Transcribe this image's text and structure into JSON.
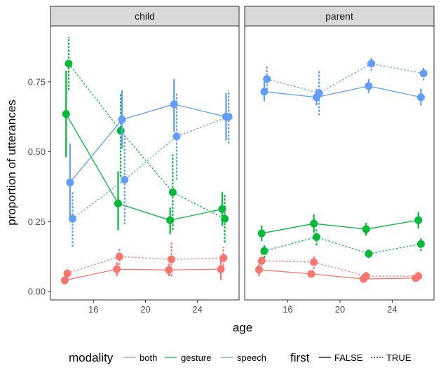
{
  "chart_data": {
    "type": "line",
    "xlabel": "age",
    "ylabel": "proportion of utterances",
    "xlim": [
      12.7,
      27.2
    ],
    "ylim": [
      -0.03,
      0.95
    ],
    "x_ticks": [
      16,
      20,
      24
    ],
    "y_ticks": [
      0,
      0.25,
      0.5,
      0.75
    ],
    "y_tick_labels": [
      "0.00",
      "0.25",
      "0.50",
      "0.75"
    ],
    "grid": false,
    "legend_position": "bottom",
    "modality_title": "modality",
    "modality_entries": [
      {
        "key": "both",
        "label": "both",
        "color": "#F8766D"
      },
      {
        "key": "gesture",
        "label": "gesture",
        "color": "#00BA38"
      },
      {
        "key": "speech",
        "label": "speech",
        "color": "#619CFF"
      }
    ],
    "first_title": "first",
    "first_entries": [
      {
        "key": "FALSE",
        "label": "FALSE",
        "dash": "solid"
      },
      {
        "key": "TRUE",
        "label": "TRUE",
        "dash": "dotted"
      }
    ],
    "panels": [
      {
        "title": "child",
        "series": [
          {
            "modality": "both",
            "first": "FALSE",
            "points": [
              [
                13.8,
                0.04,
                0.025,
                0.055
              ],
              [
                17.8,
                0.08,
                0.055,
                0.105
              ],
              [
                21.8,
                0.077,
                0.055,
                0.1
              ],
              [
                25.8,
                0.08,
                0.04,
                0.12
              ]
            ]
          },
          {
            "modality": "both",
            "first": "TRUE",
            "points": [
              [
                14.0,
                0.065,
                0.045,
                0.085
              ],
              [
                18.0,
                0.125,
                0.095,
                0.155
              ],
              [
                22.0,
                0.115,
                0.055,
                0.175
              ],
              [
                26.0,
                0.12,
                0.08,
                0.16
              ]
            ]
          },
          {
            "modality": "gesture",
            "first": "FALSE",
            "points": [
              [
                13.9,
                0.635,
                0.48,
                0.79
              ],
              [
                17.9,
                0.315,
                0.22,
                0.43
              ],
              [
                21.9,
                0.255,
                0.205,
                0.3
              ],
              [
                25.9,
                0.295,
                0.235,
                0.355
              ]
            ]
          },
          {
            "modality": "gesture",
            "first": "TRUE",
            "points": [
              [
                14.1,
                0.815,
                0.72,
                0.91
              ],
              [
                18.1,
                0.575,
                0.41,
                0.71
              ],
              [
                22.1,
                0.355,
                0.22,
                0.49
              ],
              [
                26.1,
                0.26,
                0.175,
                0.345
              ]
            ]
          },
          {
            "modality": "speech",
            "first": "FALSE",
            "points": [
              [
                14.2,
                0.39,
                0.26,
                0.53
              ],
              [
                18.2,
                0.615,
                0.51,
                0.72
              ],
              [
                22.2,
                0.67,
                0.57,
                0.76
              ],
              [
                26.2,
                0.625,
                0.54,
                0.71
              ]
            ]
          },
          {
            "modality": "speech",
            "first": "TRUE",
            "points": [
              [
                14.4,
                0.26,
                0.16,
                0.36
              ],
              [
                18.4,
                0.4,
                0.24,
                0.56
              ],
              [
                22.4,
                0.555,
                0.4,
                0.71
              ],
              [
                26.4,
                0.625,
                0.53,
                0.72
              ]
            ]
          }
        ]
      },
      {
        "title": "parent",
        "series": [
          {
            "modality": "both",
            "first": "FALSE",
            "points": [
              [
                13.8,
                0.078,
                0.055,
                0.1
              ],
              [
                17.8,
                0.063,
                0.05,
                0.076
              ],
              [
                21.8,
                0.045,
                0.035,
                0.055
              ],
              [
                25.8,
                0.048,
                0.035,
                0.061
              ]
            ]
          },
          {
            "modality": "both",
            "first": "TRUE",
            "points": [
              [
                14.0,
                0.11,
                0.08,
                0.14
              ],
              [
                18.0,
                0.105,
                0.08,
                0.13
              ],
              [
                22.0,
                0.055,
                0.04,
                0.07
              ],
              [
                26.0,
                0.055,
                0.04,
                0.07
              ]
            ]
          },
          {
            "modality": "gesture",
            "first": "FALSE",
            "points": [
              [
                14.0,
                0.208,
                0.18,
                0.236
              ],
              [
                18.0,
                0.243,
                0.21,
                0.276
              ],
              [
                22.0,
                0.223,
                0.2,
                0.246
              ],
              [
                26.0,
                0.255,
                0.225,
                0.285
              ]
            ]
          },
          {
            "modality": "gesture",
            "first": "TRUE",
            "points": [
              [
                14.2,
                0.145,
                0.12,
                0.17
              ],
              [
                18.2,
                0.195,
                0.165,
                0.225
              ],
              [
                22.2,
                0.135,
                0.12,
                0.15
              ],
              [
                26.2,
                0.17,
                0.145,
                0.195
              ]
            ]
          },
          {
            "modality": "speech",
            "first": "FALSE",
            "points": [
              [
                14.2,
                0.715,
                0.68,
                0.75
              ],
              [
                18.2,
                0.695,
                0.665,
                0.725
              ],
              [
                22.2,
                0.735,
                0.71,
                0.76
              ],
              [
                26.2,
                0.695,
                0.665,
                0.725
              ]
            ]
          },
          {
            "modality": "speech",
            "first": "TRUE",
            "points": [
              [
                14.4,
                0.76,
                0.71,
                0.81
              ],
              [
                18.4,
                0.71,
                0.63,
                0.79
              ],
              [
                22.4,
                0.815,
                0.79,
                0.84
              ],
              [
                26.4,
                0.78,
                0.755,
                0.805
              ]
            ]
          }
        ]
      }
    ]
  }
}
